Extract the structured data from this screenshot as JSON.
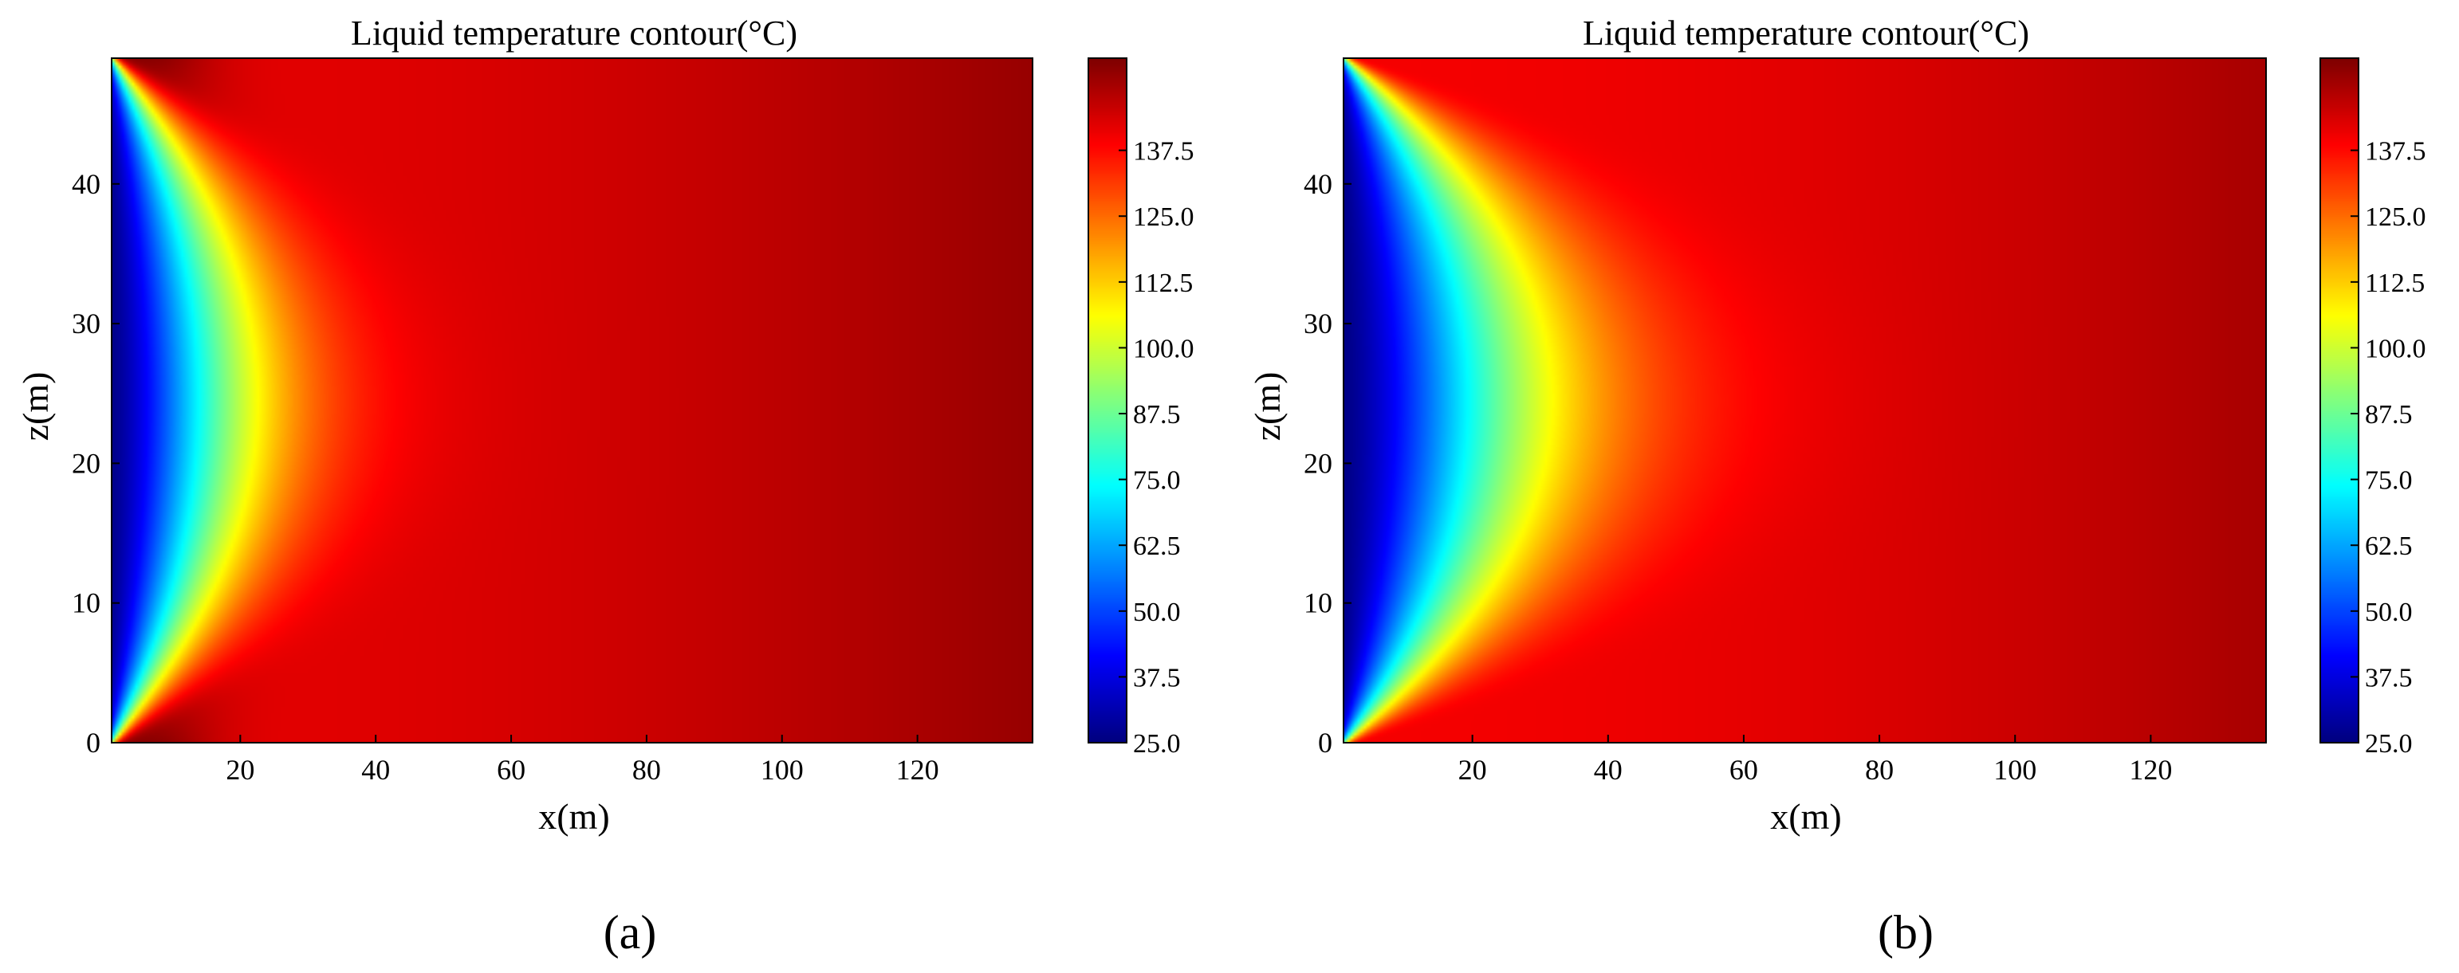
{
  "figure": {
    "panels": [
      {
        "label": "(a)",
        "variant": "a"
      },
      {
        "label": "(b)",
        "variant": "b"
      }
    ]
  },
  "chart_data": [
    {
      "type": "heatmap",
      "title": "Liquid temperature contour(°C)",
      "xlabel": "x(m)",
      "ylabel": "z(m)",
      "xlim": [
        1,
        137
      ],
      "ylim": [
        0,
        49
      ],
      "xticks": [
        20,
        40,
        60,
        80,
        100,
        120
      ],
      "yticks": [
        0,
        10,
        20,
        30,
        40
      ],
      "colormap": "jet",
      "colorbar": {
        "min": 25.0,
        "max": 155.0,
        "ticks": [
          "25.0",
          "37.5",
          "50.0",
          "62.5",
          "75.0",
          "87.5",
          "100.0",
          "112.5",
          "125.0",
          "137.5"
        ]
      },
      "field_description_values": {
        "inlet_temperature_C": 25.0,
        "max_temperature_C": 150.0,
        "cold_front_depth_at_mid_height_m": 32,
        "hot_edge_bands": true
      },
      "subfigure_label": "(a)"
    },
    {
      "type": "heatmap",
      "title": "Liquid temperature contour(°C)",
      "xlabel": "x(m)",
      "ylabel": "z(m)",
      "xlim": [
        1,
        137
      ],
      "ylim": [
        0,
        49
      ],
      "xticks": [
        20,
        40,
        60,
        80,
        100,
        120
      ],
      "yticks": [
        0,
        10,
        20,
        30,
        40
      ],
      "colormap": "jet",
      "colorbar": {
        "min": 25.0,
        "max": 155.0,
        "ticks": [
          "25.0",
          "37.5",
          "50.0",
          "62.5",
          "75.0",
          "87.5",
          "100.0",
          "112.5",
          "125.0",
          "137.5"
        ]
      },
      "field_description_values": {
        "inlet_temperature_C": 25.0,
        "max_temperature_C": 148.0,
        "cold_front_depth_at_mid_height_m": 45,
        "hot_edge_bands": false
      },
      "subfigure_label": "(b)"
    }
  ]
}
